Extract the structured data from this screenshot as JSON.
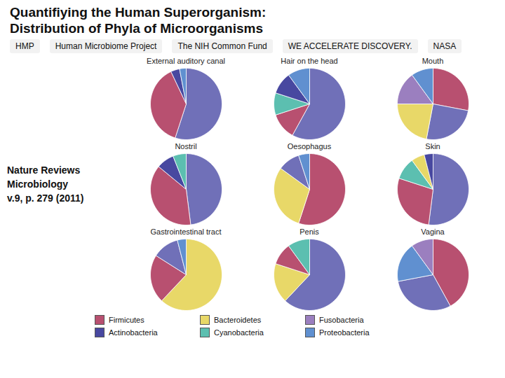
{
  "title": "Quantifiying the Human Superorganism:",
  "subtitle": "Distribution of Phyla of Microorganisms",
  "caption": "Nature Reviews\nMicrobiology\n v.9, p. 279 (2011)",
  "annotations": [
    "HMP",
    "Human Microbiome Project",
    "The NIH Common Fund",
    "WE ACCELERATE DISCOVERY.",
    "NASA"
  ],
  "series": [
    {
      "name": "Firmicutes",
      "color": "#b85070"
    },
    {
      "name": "Bacteroidetes",
      "color": "#e8d868"
    },
    {
      "name": "Fusobacteria",
      "color": "#9b7fbf"
    },
    {
      "name": "Actinobacteria",
      "color": "#4848a0"
    },
    {
      "name": "Cyanobacteria",
      "color": "#5cbfb0"
    },
    {
      "name": "Proteobacteria",
      "color": "#6090d0"
    }
  ],
  "chart_data": [
    {
      "type": "pie",
      "title": "External auditory canal",
      "values": [
        0.55,
        0.38,
        0.04,
        0.03
      ],
      "colors": [
        "#7070b8",
        "#b85070",
        "#4848a0",
        "#6090d0"
      ]
    },
    {
      "type": "pie",
      "title": "Hair on the head",
      "values": [
        0.58,
        0.12,
        0.1,
        0.1,
        0.1
      ],
      "colors": [
        "#7070b8",
        "#b85070",
        "#5cbfb0",
        "#4848a0",
        "#6090d0"
      ]
    },
    {
      "type": "pie",
      "title": "Mouth",
      "values": [
        0.28,
        0.25,
        0.22,
        0.15,
        0.1
      ],
      "colors": [
        "#b85070",
        "#7070b8",
        "#e8d868",
        "#9b7fbf",
        "#6090d0"
      ]
    },
    {
      "type": "pie",
      "title": "Nostril",
      "values": [
        0.48,
        0.38,
        0.08,
        0.06
      ],
      "colors": [
        "#7070b8",
        "#b85070",
        "#4848a0",
        "#5cbfb0"
      ]
    },
    {
      "type": "pie",
      "title": "Oesophagus",
      "values": [
        0.55,
        0.3,
        0.1,
        0.05
      ],
      "colors": [
        "#b85070",
        "#e8d868",
        "#7070b8",
        "#6090d0"
      ]
    },
    {
      "type": "pie",
      "title": "Skin",
      "values": [
        0.52,
        0.28,
        0.1,
        0.06,
        0.04
      ],
      "colors": [
        "#7070b8",
        "#b85070",
        "#5cbfb0",
        "#e8d868",
        "#4848a0"
      ]
    },
    {
      "type": "pie",
      "title": "Gastrointestinal tract",
      "values": [
        0.62,
        0.22,
        0.12,
        0.04
      ],
      "colors": [
        "#e8d868",
        "#b85070",
        "#7070b8",
        "#6090d0"
      ]
    },
    {
      "type": "pie",
      "title": "Penis",
      "values": [
        0.62,
        0.18,
        0.1,
        0.1
      ],
      "colors": [
        "#7070b8",
        "#e8d868",
        "#b85070",
        "#5cbfb0"
      ]
    },
    {
      "type": "pie",
      "title": "Vagina",
      "values": [
        0.42,
        0.3,
        0.18,
        0.1
      ],
      "colors": [
        "#b85070",
        "#7070b8",
        "#6090d0",
        "#9b7fbf"
      ]
    }
  ]
}
